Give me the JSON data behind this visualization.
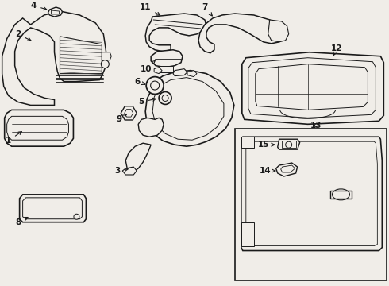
{
  "bg_color": "#f0ede8",
  "line_color": "#1a1a1a",
  "label_color": "#111111",
  "figsize": [
    4.9,
    3.6
  ],
  "dpi": 100,
  "xlim": [
    0,
    490
  ],
  "ylim": [
    0,
    360
  ]
}
